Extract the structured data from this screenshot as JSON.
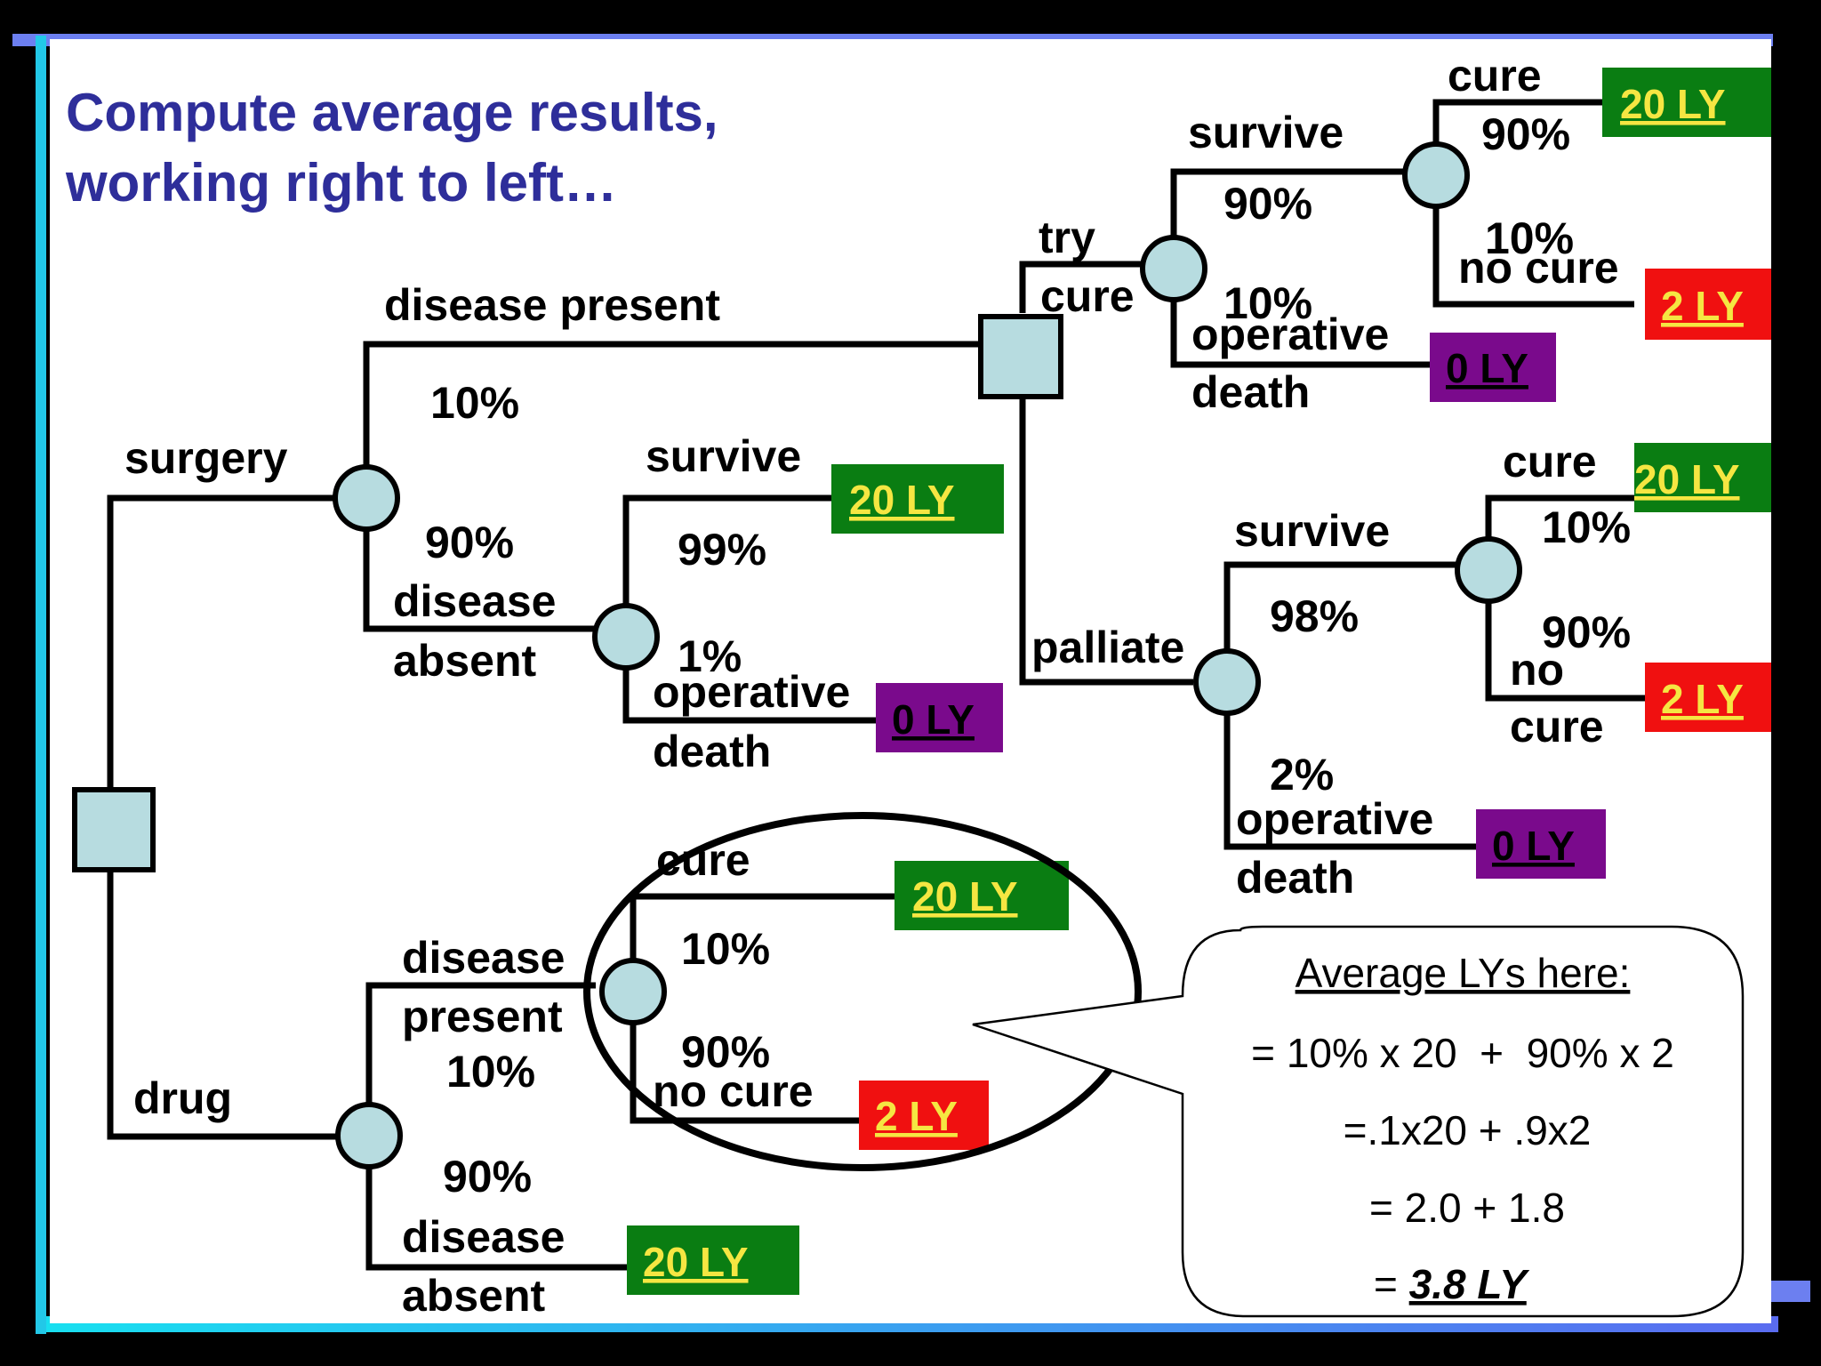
{
  "title_lines": [
    "Compute average results,",
    "working right to left…"
  ],
  "labels": {
    "surgery": "surgery",
    "drug": "drug",
    "disease_present": "disease present",
    "p10": "10%",
    "p90": "90%",
    "disease": "disease",
    "absent": "absent",
    "present": "present",
    "survive": "survive",
    "p99": "99%",
    "p1": "1%",
    "operative": "operative",
    "death": "death",
    "try": "try",
    "cure": "cure",
    "p98": "98%",
    "p2": "2%",
    "palliate": "palliate",
    "no": "no",
    "no_cure": "no cure"
  },
  "outcomes": {
    "ly20": "20 LY",
    "ly2": "2 LY",
    "ly0": "0 LY"
  },
  "colors": {
    "background": "#000000",
    "slide": "#ffffff",
    "title": "#2e2e9a",
    "node_fill": "#b7dce0",
    "outcome_20": "#0a7d12",
    "outcome_2": "#f01010",
    "outcome_0": "#7a0a8c",
    "outcome_text": "#f5e642"
  },
  "callout": {
    "heading": "Average LYs here:",
    "line1": "= 10% x 20  +  90% x 2",
    "line2": "=.1x20 + .9x2",
    "line3": "= 2.0 + 1.8",
    "result_prefix": "= ",
    "result": "3.8 LY"
  }
}
